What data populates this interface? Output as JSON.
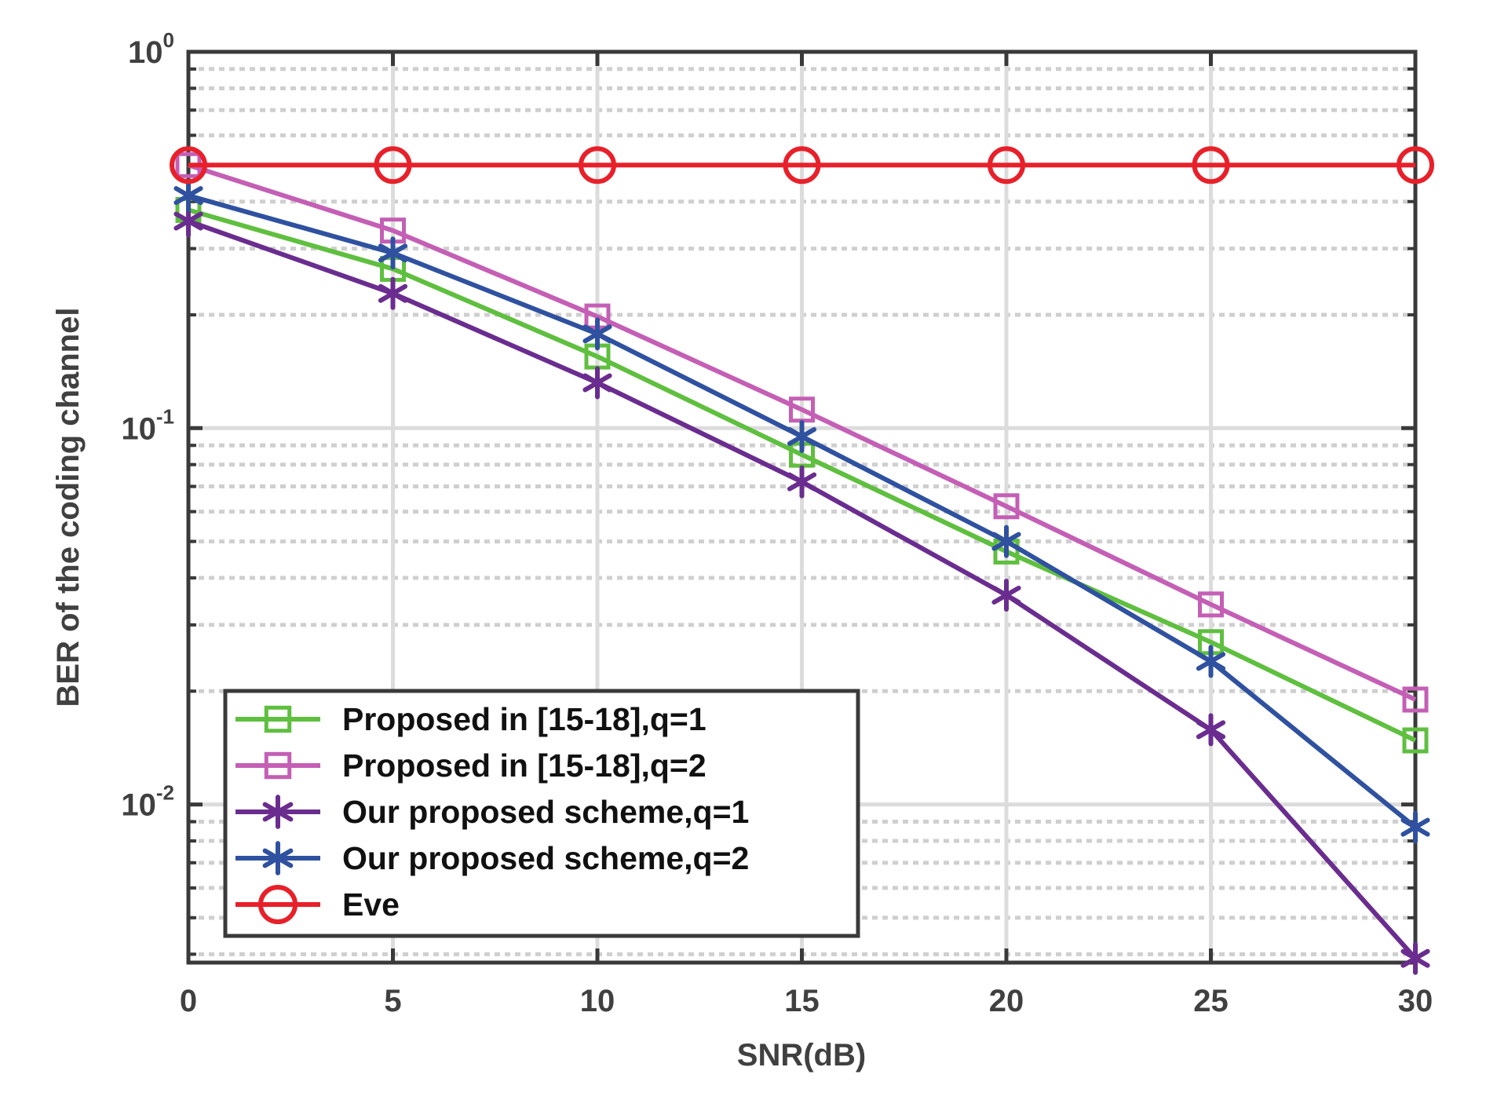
{
  "chart_data": {
    "type": "line",
    "title": "",
    "xlabel": "SNR(dB)",
    "ylabel": "BER of the coding channel",
    "xscale": "linear",
    "yscale": "log",
    "xlim": [
      0,
      30
    ],
    "ylim": [
      0.0038,
      1
    ],
    "grid": true,
    "x": [
      0,
      5,
      10,
      15,
      20,
      25,
      30
    ],
    "xticks": [
      0,
      5,
      10,
      15,
      20,
      25,
      30
    ],
    "yticks": [
      {
        "value": 1,
        "base": "10",
        "exp": "0"
      },
      {
        "value": 0.1,
        "base": "10",
        "exp": "-1"
      },
      {
        "value": 0.01,
        "base": "10",
        "exp": "-2"
      }
    ],
    "legend_position": "bottom-left",
    "series": [
      {
        "name": "Proposed in [15-18],q=1",
        "color": "#5fbf3f",
        "marker": "square",
        "values": [
          0.38,
          0.265,
          0.155,
          0.085,
          0.047,
          0.027,
          0.0148
        ]
      },
      {
        "name": "Proposed in [15-18],q=2",
        "color": "#c45fb5",
        "marker": "square",
        "values": [
          0.5,
          0.335,
          0.198,
          0.112,
          0.062,
          0.034,
          0.019
        ]
      },
      {
        "name": "Our proposed scheme,q=1",
        "color": "#6a2d8f",
        "marker": "asterisk",
        "values": [
          0.355,
          0.228,
          0.132,
          0.072,
          0.036,
          0.0158,
          0.0039
        ]
      },
      {
        "name": "Our proposed scheme,q=2",
        "color": "#2f51a0",
        "marker": "asterisk",
        "values": [
          0.415,
          0.292,
          0.178,
          0.095,
          0.05,
          0.024,
          0.0087
        ]
      },
      {
        "name": "Eve",
        "color": "#e8202a",
        "marker": "circle",
        "values": [
          0.5,
          0.5,
          0.5,
          0.5,
          0.5,
          0.5,
          0.5
        ]
      }
    ]
  }
}
